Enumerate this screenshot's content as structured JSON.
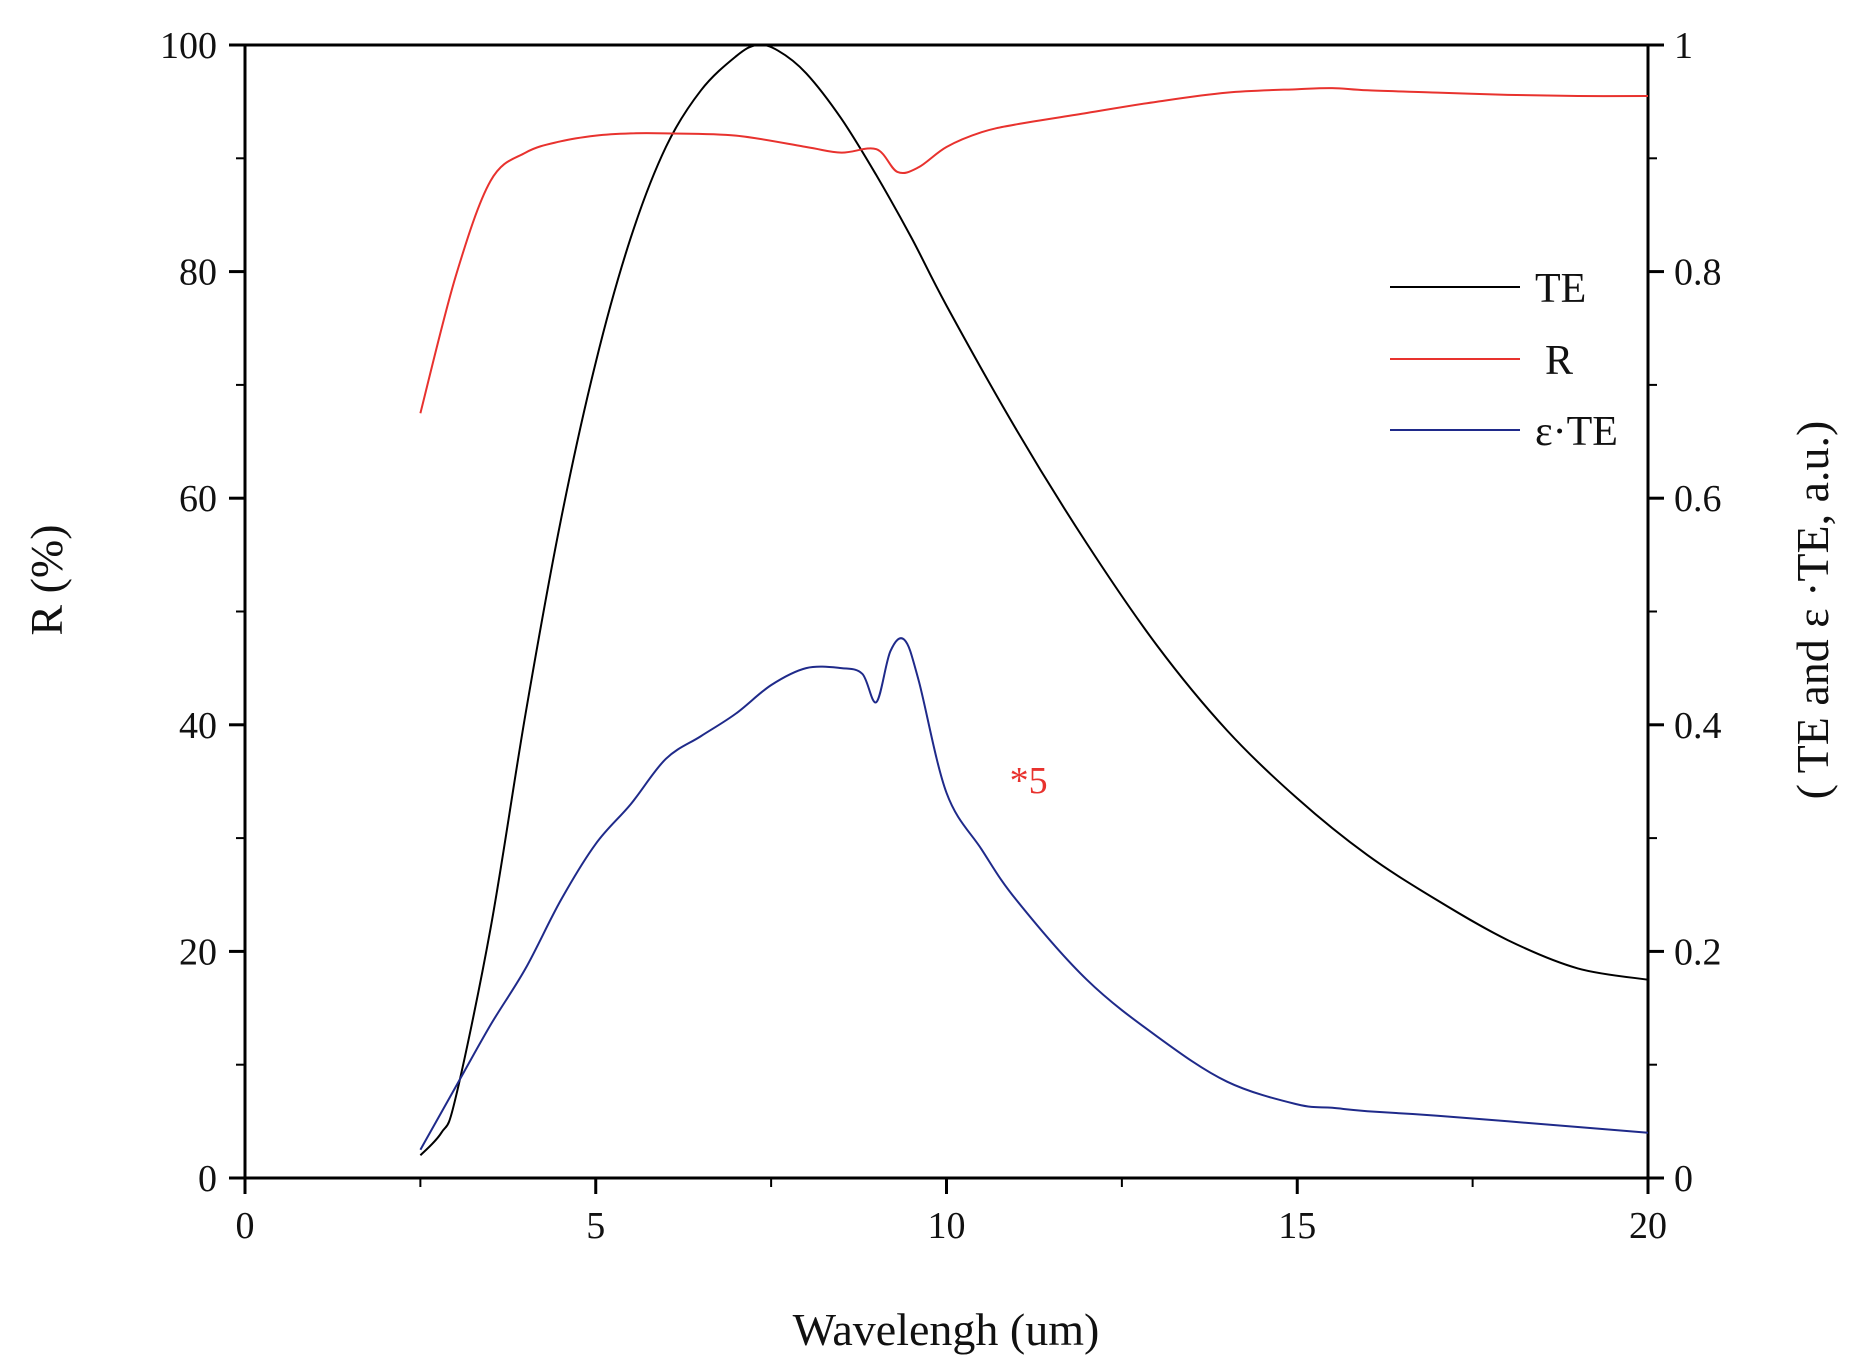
{
  "chart_data": {
    "type": "line",
    "xlabel": "Wavelengh (um)",
    "ylabel_left": "R (%)",
    "ylabel_right": "( TE and  ε ·TE, a.u.)",
    "xlim": [
      0,
      20
    ],
    "ylim_left": [
      0,
      100
    ],
    "ylim_right": [
      0,
      1
    ],
    "xticks": [
      "0",
      "5",
      "10",
      "15",
      "20"
    ],
    "xtick_values": [
      0,
      5,
      10,
      15,
      20
    ],
    "yticks_left": [
      "0",
      "20",
      "40",
      "60",
      "80",
      "100"
    ],
    "ytick_values_left": [
      0,
      20,
      40,
      60,
      80,
      100
    ],
    "yticks_right": [
      "0",
      "0.2",
      "0.4",
      "0.6",
      "0.8",
      "1"
    ],
    "ytick_values_right": [
      0,
      0.2,
      0.4,
      0.6,
      0.8,
      1
    ],
    "grid": false,
    "legend_position": "top-right",
    "annotation": {
      "text": "*5",
      "x": 10.9,
      "y_right": 0.34,
      "color": "#e8322e"
    },
    "series": [
      {
        "name": "TE",
        "legend_label": "TE",
        "axis": "right",
        "color": "#000000",
        "x": [
          2.5,
          2.8,
          3.0,
          3.5,
          4.0,
          4.5,
          5.0,
          5.5,
          6.0,
          6.5,
          7.0,
          7.3,
          7.6,
          8.0,
          8.5,
          9.0,
          9.5,
          10.0,
          11.0,
          12.0,
          13.0,
          14.0,
          15.0,
          16.0,
          17.0,
          18.0,
          19.0,
          20.0
        ],
        "y": [
          0.02,
          0.04,
          0.07,
          0.22,
          0.41,
          0.58,
          0.72,
          0.83,
          0.91,
          0.96,
          0.99,
          1.0,
          0.995,
          0.975,
          0.935,
          0.885,
          0.83,
          0.77,
          0.66,
          0.56,
          0.47,
          0.395,
          0.335,
          0.285,
          0.245,
          0.21,
          0.185,
          0.175
        ]
      },
      {
        "name": "R",
        "legend_label": "R",
        "axis": "left",
        "color": "#e8322e",
        "x": [
          2.5,
          3.0,
          3.5,
          4.0,
          4.5,
          5.0,
          5.5,
          6.0,
          7.0,
          8.0,
          8.5,
          9.0,
          9.3,
          9.6,
          10.0,
          10.5,
          11.0,
          12.0,
          13.0,
          14.0,
          15.0,
          15.5,
          16.0,
          17.0,
          18.0,
          19.0,
          20.0
        ],
        "y": [
          67.5,
          79.5,
          88.0,
          90.5,
          91.5,
          92.0,
          92.2,
          92.2,
          92.0,
          91.0,
          90.5,
          90.8,
          88.8,
          89.2,
          91.0,
          92.3,
          93.0,
          94.0,
          95.0,
          95.8,
          96.1,
          96.2,
          96.0,
          95.8,
          95.6,
          95.5,
          95.5
        ]
      },
      {
        "name": "ε·TE",
        "legend_label": "ε·TE",
        "axis": "right",
        "color": "#1f2a8a",
        "x": [
          2.5,
          3.0,
          3.5,
          4.0,
          4.5,
          5.0,
          5.5,
          6.0,
          6.5,
          7.0,
          7.5,
          8.0,
          8.5,
          8.8,
          9.0,
          9.2,
          9.4,
          9.6,
          10.0,
          10.5,
          11.0,
          12.0,
          13.0,
          14.0,
          15.0,
          15.5,
          16.0,
          17.0,
          18.0,
          19.0,
          20.0
        ],
        "y": [
          0.025,
          0.08,
          0.135,
          0.185,
          0.245,
          0.295,
          0.33,
          0.37,
          0.39,
          0.41,
          0.435,
          0.45,
          0.45,
          0.445,
          0.42,
          0.465,
          0.475,
          0.44,
          0.34,
          0.29,
          0.245,
          0.175,
          0.125,
          0.085,
          0.065,
          0.062,
          0.059,
          0.055,
          0.05,
          0.045,
          0.04
        ]
      }
    ]
  }
}
